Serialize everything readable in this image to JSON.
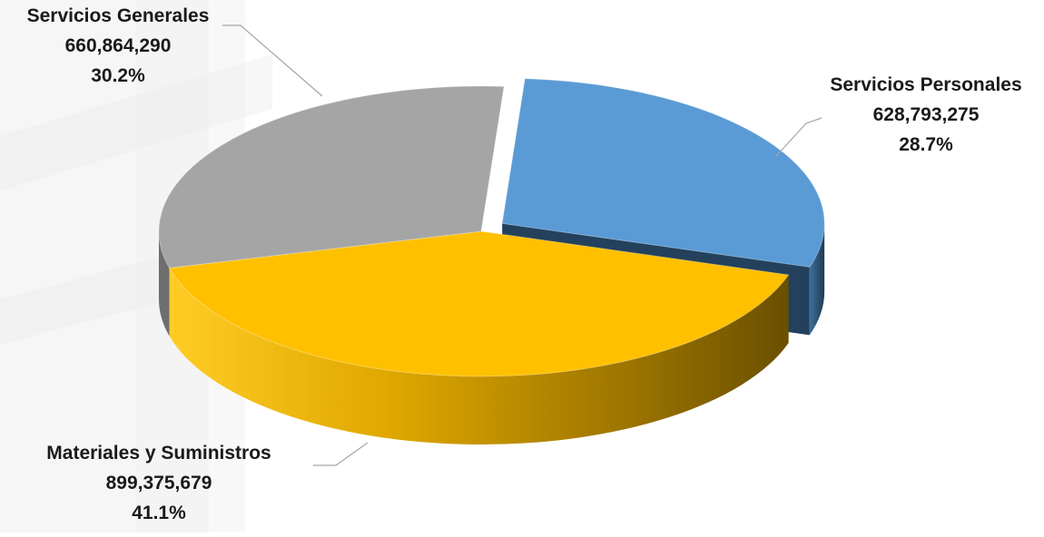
{
  "chart_data": {
    "type": "pie",
    "title": "",
    "slices": [
      {
        "label": "Servicios Personales",
        "value": 628793275,
        "value_text": "628,793,275",
        "percent_text": "28.7%",
        "color": "#5b9bd5",
        "side_color": "#2f5779",
        "exploded": true
      },
      {
        "label": "Materiales y Suministros",
        "value": 899375679,
        "value_text": "899,375,679",
        "percent_text": "41.1%",
        "color": "#ffc000",
        "side_color": "#b38700",
        "exploded": false
      },
      {
        "label": "Servicios Generales",
        "value": 660864290,
        "value_text": "660,864,290",
        "percent_text": "30.2%",
        "color": "#a5a5a5",
        "side_color": "#6e6e6e",
        "exploded": false
      }
    ],
    "legend": "none",
    "style": "3d-pie"
  }
}
